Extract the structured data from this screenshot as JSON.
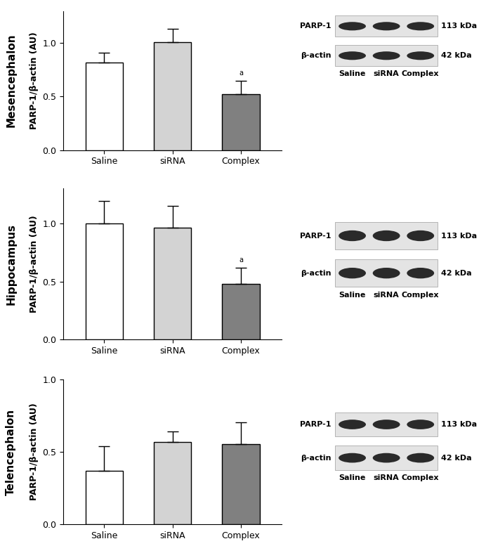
{
  "chart_data": [
    {
      "type": "bar",
      "title": "Mesencephalon",
      "ylabel": "PARP-1/β-actin (AU)",
      "categories": [
        "Saline",
        "siRNA",
        "Complex"
      ],
      "values": [
        0.82,
        1.01,
        0.52
      ],
      "errors": [
        0.09,
        0.12,
        0.13
      ],
      "colors": [
        "#ffffff",
        "#d3d3d3",
        "#808080"
      ],
      "ylim": [
        0,
        1.3
      ],
      "yticks": [
        {
          "value": 0,
          "label": "0.0"
        },
        {
          "value": 0.5,
          "label": "0.5"
        },
        {
          "value": 1.0,
          "label": "1.0"
        }
      ],
      "annotations": [
        {
          "category": "Complex",
          "text": "a"
        }
      ],
      "blot": {
        "bands": [
          {
            "name": "PARP-1",
            "size": "113 kDa"
          },
          {
            "name": "β-actin",
            "size": "42 kDa"
          }
        ],
        "lanes": [
          "Saline",
          "siRNA",
          "Complex"
        ]
      }
    },
    {
      "type": "bar",
      "title": "Hippocampus",
      "ylabel": "PARP-1/β-actin (AU)",
      "categories": [
        "Saline",
        "siRNA",
        "Complex"
      ],
      "values": [
        1.0,
        0.96,
        0.48
      ],
      "errors": [
        0.19,
        0.19,
        0.14
      ],
      "colors": [
        "#ffffff",
        "#d3d3d3",
        "#808080"
      ],
      "ylim": [
        0,
        1.3
      ],
      "yticks": [
        {
          "value": 0,
          "label": "0.0"
        },
        {
          "value": 0.5,
          "label": "0.5"
        },
        {
          "value": 1.0,
          "label": "1.0"
        }
      ],
      "annotations": [
        {
          "category": "Complex",
          "text": "a"
        }
      ],
      "blot": {
        "bands": [
          {
            "name": "PARP-1",
            "size": "113 kDa"
          },
          {
            "name": "β-actin",
            "size": "42 kDa"
          }
        ],
        "lanes": [
          "Saline",
          "siRNA",
          "Complex"
        ]
      }
    },
    {
      "type": "bar",
      "title": "Telencephalon",
      "ylabel": "PARP-1/β-actin (AU)",
      "categories": [
        "Saline",
        "siRNA",
        "Complex"
      ],
      "values": [
        0.37,
        0.57,
        0.555
      ],
      "errors": [
        0.17,
        0.07,
        0.15
      ],
      "colors": [
        "#ffffff",
        "#d3d3d3",
        "#808080"
      ],
      "ylim": [
        0,
        1.0
      ],
      "yticks": [
        {
          "value": 0,
          "label": "0.0"
        },
        {
          "value": 0.5,
          "label": "0.5"
        },
        {
          "value": 1.0,
          "label": "1.0"
        }
      ],
      "blot": {
        "bands": [
          {
            "name": "PARP-1",
            "size": "113 kDa"
          },
          {
            "name": "β-actin",
            "size": "42 kDa"
          }
        ],
        "lanes": [
          "Saline",
          "siRNA",
          "Complex"
        ]
      }
    }
  ]
}
